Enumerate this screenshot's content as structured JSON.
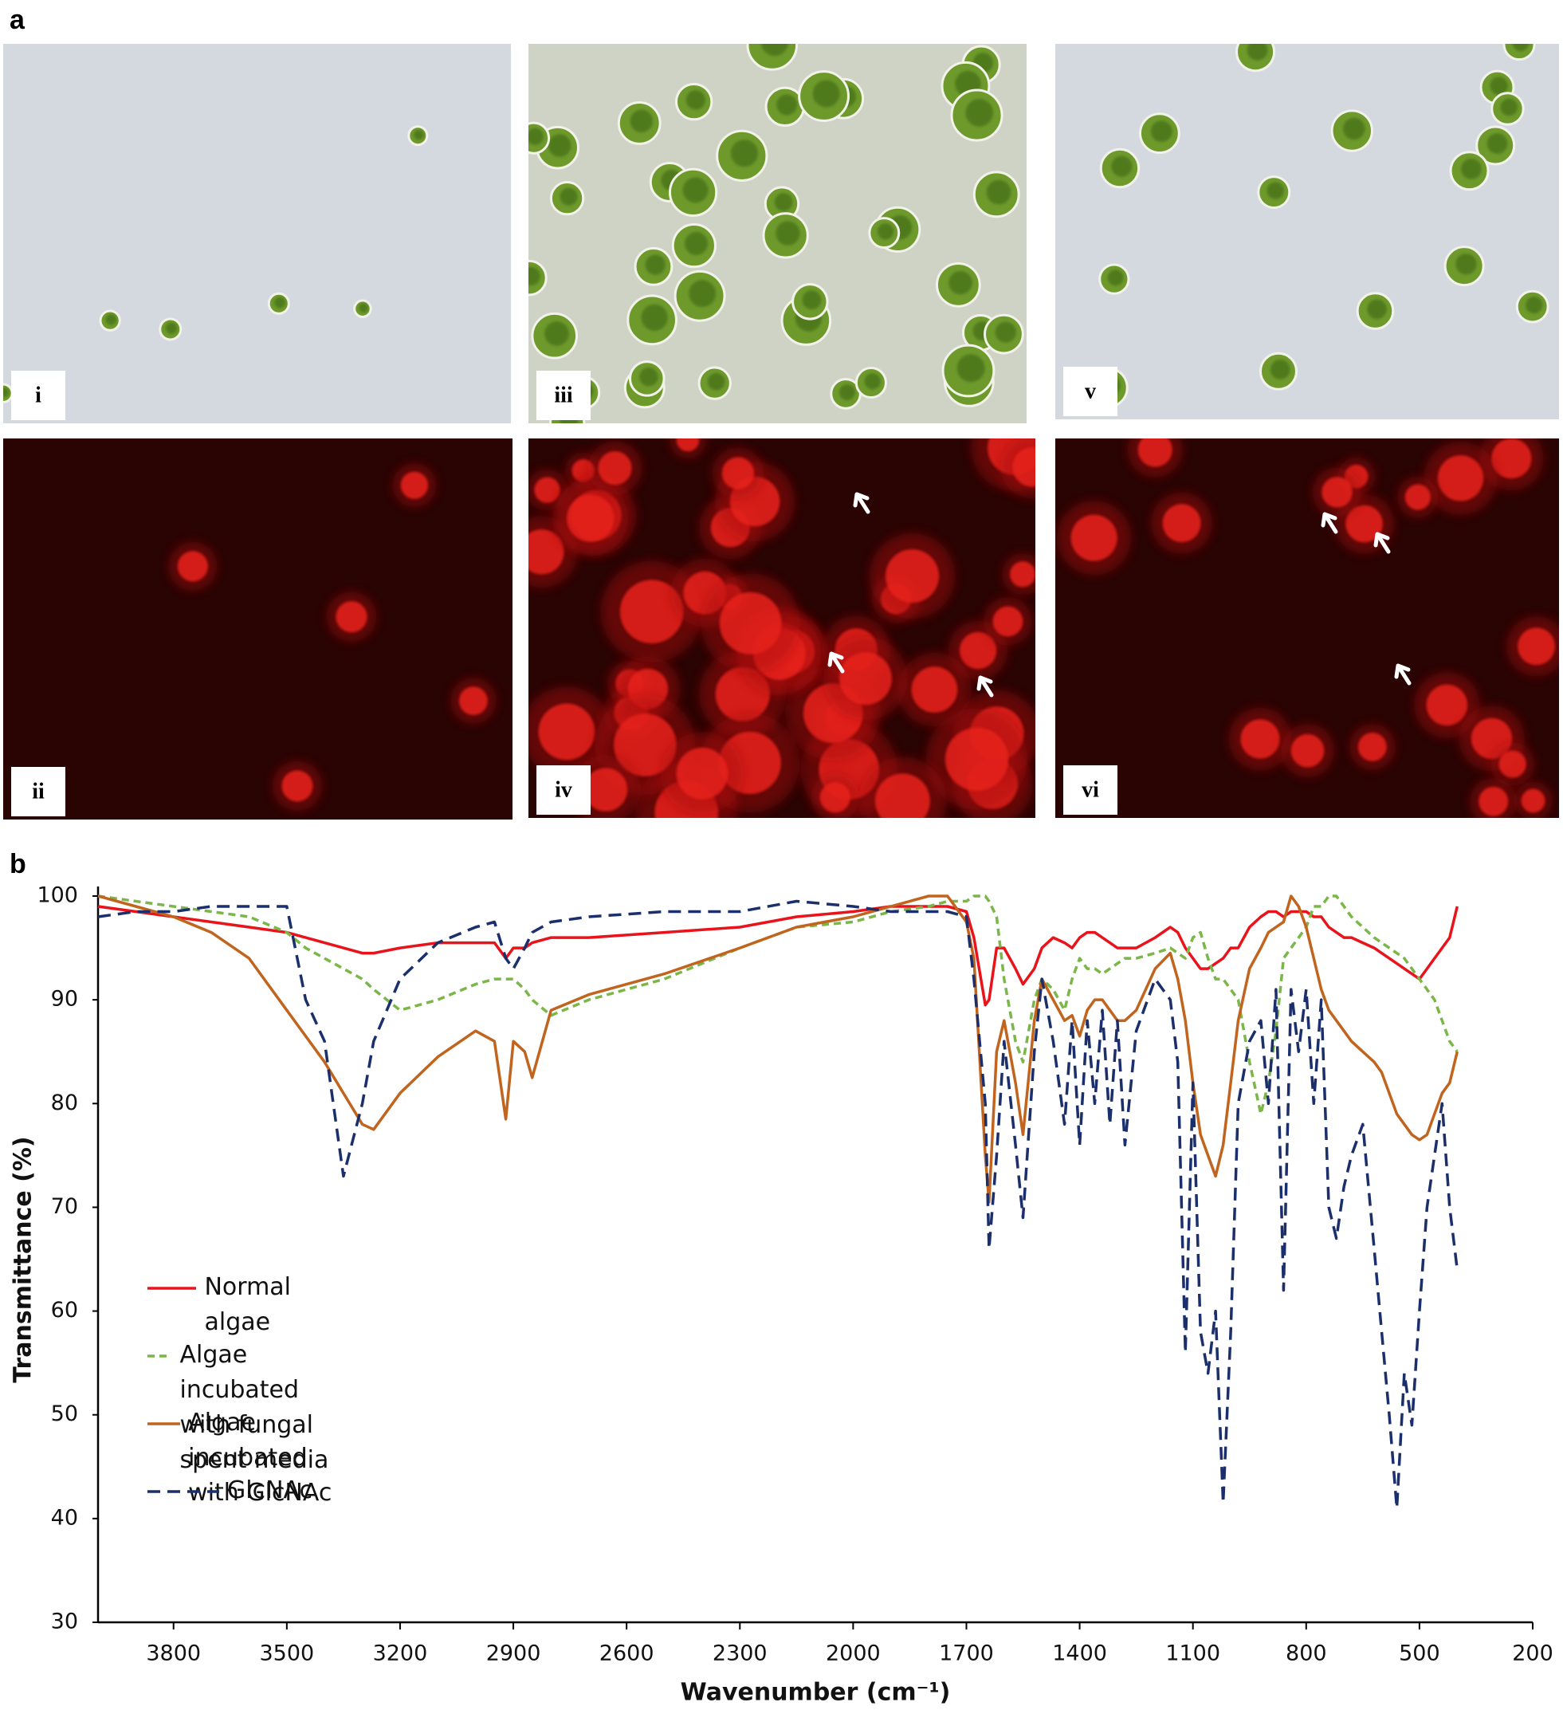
{
  "figure": {
    "panel_labels": [
      "a",
      "b"
    ],
    "image_labels": [
      "i",
      "ii",
      "iii",
      "iv",
      "v",
      "vi"
    ]
  },
  "chart_data": {
    "type": "line",
    "x_label": "Wavenumber (cm⁻¹)",
    "y_label": "Transmittance (%)",
    "xlim": [
      4000,
      200
    ],
    "xticks": [
      3800,
      3500,
      3200,
      2900,
      2600,
      2300,
      2000,
      1700,
      1400,
      1100,
      800,
      500,
      200
    ],
    "ylim": [
      30,
      100
    ],
    "yticks": [
      30,
      40,
      50,
      60,
      70,
      80,
      90,
      100
    ],
    "grid": false,
    "legend": "center-left",
    "x": [
      4000,
      3900,
      3800,
      3700,
      3600,
      3500,
      3450,
      3400,
      3350,
      3300,
      3270,
      3200,
      3100,
      3000,
      2950,
      2920,
      2900,
      2870,
      2850,
      2800,
      2700,
      2500,
      2300,
      2150,
      2000,
      1900,
      1800,
      1750,
      1700,
      1680,
      1650,
      1640,
      1620,
      1600,
      1570,
      1550,
      1520,
      1500,
      1470,
      1440,
      1420,
      1400,
      1380,
      1360,
      1340,
      1320,
      1300,
      1280,
      1250,
      1200,
      1160,
      1140,
      1120,
      1100,
      1080,
      1060,
      1040,
      1020,
      1000,
      980,
      950,
      920,
      900,
      880,
      860,
      840,
      820,
      800,
      780,
      760,
      740,
      720,
      700,
      680,
      650,
      620,
      600,
      580,
      560,
      540,
      520,
      500,
      480,
      460,
      440,
      420,
      400
    ],
    "series": [
      {
        "name": "Normal algae",
        "color": "#e8131b",
        "line_style": "solid",
        "values": [
          99,
          98.5,
          98,
          97.5,
          97,
          96.5,
          96,
          95.5,
          95,
          94.5,
          94.5,
          95,
          95.5,
          95.5,
          95.5,
          94,
          95,
          95,
          95.5,
          96,
          96,
          96.5,
          97,
          98,
          98.5,
          99,
          99,
          99,
          98.5,
          96,
          89.5,
          90,
          95,
          95,
          93,
          91.5,
          93,
          95,
          96,
          95.5,
          95,
          96,
          96.5,
          96.5,
          96,
          95.5,
          95,
          95,
          95,
          96,
          97,
          96.5,
          95,
          94,
          93,
          93,
          93.5,
          94,
          95,
          95,
          97,
          98,
          98.5,
          98.5,
          98,
          98.5,
          98.5,
          98.5,
          98,
          98,
          97,
          96.5,
          96,
          96,
          95.5,
          95,
          94.5,
          94,
          93.5,
          93,
          92.5,
          92,
          93,
          94,
          95,
          96,
          99
        ]
      },
      {
        "name": "Algae incubated with fungal spent media",
        "color": "#7ab648",
        "line_style": "dashed",
        "values": [
          100,
          99.5,
          99,
          98.5,
          98,
          96.5,
          95,
          94,
          93,
          92,
          91,
          89,
          90,
          91.5,
          92,
          92,
          92,
          91,
          90,
          88.5,
          90,
          92,
          95,
          97,
          97.5,
          98.5,
          99,
          99.5,
          99.5,
          100,
          100,
          99.5,
          98,
          92,
          86,
          84,
          90,
          92,
          91,
          89,
          92,
          94,
          93,
          93,
          92.5,
          93,
          93.5,
          94,
          94,
          94.5,
          95,
          94.5,
          94,
          96,
          96.5,
          94,
          92,
          92,
          91,
          90,
          84,
          79,
          82,
          87,
          94,
          95,
          96,
          97,
          99,
          99,
          100,
          100,
          99,
          98,
          97,
          96,
          95.5,
          95,
          94.5,
          94,
          93,
          92,
          91,
          90,
          88,
          86,
          85
        ]
      },
      {
        "name": "Algae incubated with GlcNAc",
        "color": "#c0641e",
        "line_style": "solid",
        "values": [
          100,
          99,
          98,
          96.5,
          94,
          89,
          86.5,
          84,
          81,
          78,
          77.5,
          81,
          84.5,
          87,
          86,
          78.5,
          86,
          85,
          82.5,
          89,
          90.5,
          92.5,
          95,
          97,
          98,
          99,
          100,
          100,
          97.5,
          94,
          75,
          70.5,
          85,
          88,
          82,
          77,
          88,
          92,
          90,
          88,
          88.5,
          86.5,
          89,
          90,
          90,
          89,
          88,
          88,
          89,
          93,
          94.5,
          92,
          88,
          82,
          77,
          75,
          73,
          76,
          82,
          88,
          93,
          95,
          96.5,
          97,
          97.5,
          100,
          99,
          97,
          94,
          91,
          89,
          88,
          87,
          86,
          85,
          84,
          83,
          81,
          79,
          78,
          77,
          76.5,
          77,
          79,
          81,
          82,
          85
        ]
      },
      {
        "name": "GlcNAc",
        "color": "#1a2f6b",
        "line_style": "long-dashed",
        "values": [
          98,
          98.5,
          98.5,
          99,
          99,
          99,
          90,
          86,
          73,
          80,
          86,
          92,
          95.5,
          97,
          97.5,
          94,
          93,
          95,
          96.5,
          97.5,
          98,
          98.5,
          98.5,
          99.5,
          99,
          98.5,
          98.5,
          98.5,
          98,
          92,
          80,
          66,
          75,
          86,
          76,
          69,
          85,
          92,
          86,
          78,
          88,
          76,
          88,
          80,
          89,
          78,
          88,
          76,
          87,
          92,
          90,
          84,
          56,
          82,
          58,
          54,
          60,
          41.5,
          58,
          80,
          86,
          88,
          80,
          91,
          62,
          91,
          85,
          91,
          80,
          90,
          70,
          67,
          72,
          75,
          78,
          66,
          58,
          50,
          41,
          54,
          49,
          60,
          70,
          75,
          80,
          70,
          64
        ]
      }
    ]
  }
}
